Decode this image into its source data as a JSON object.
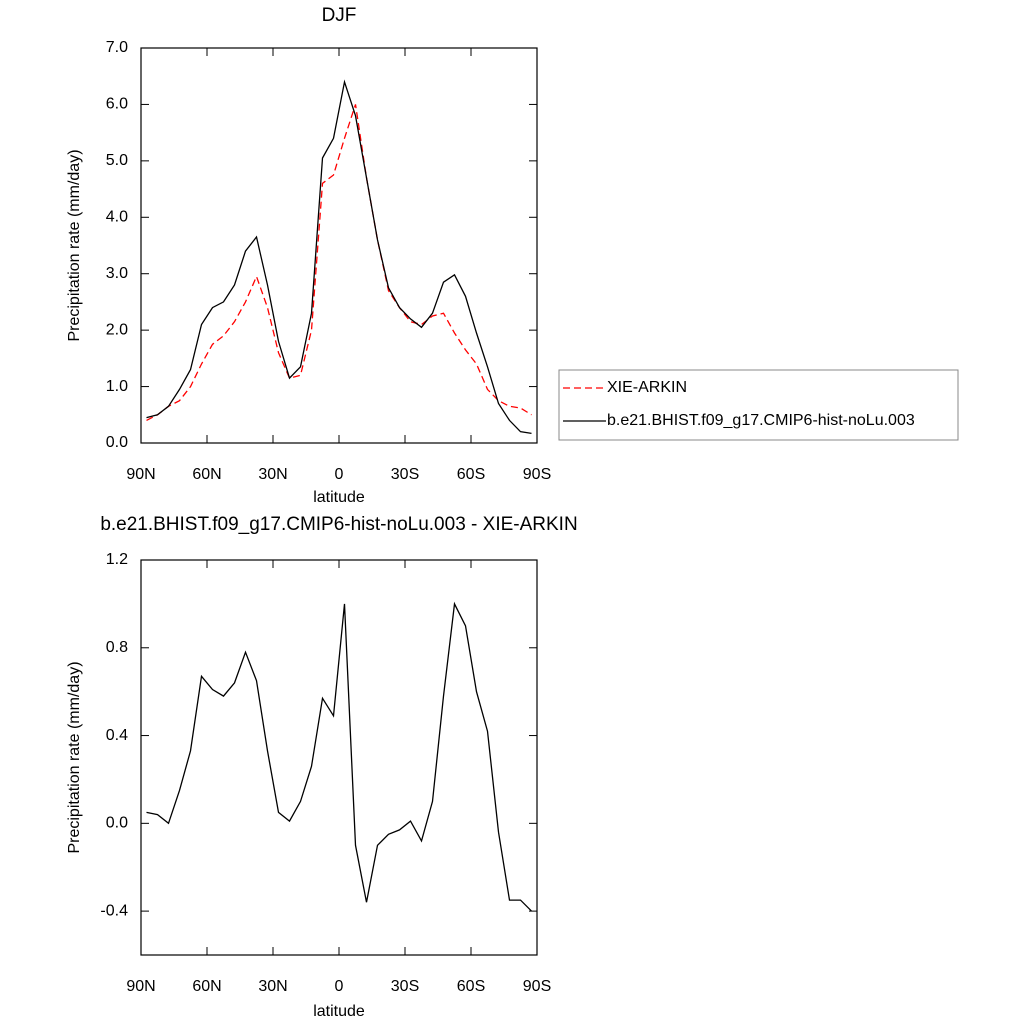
{
  "chart_data": [
    {
      "type": "line",
      "title": "DJF",
      "xlabel": "latitude",
      "ylabel": "Precipitation rate (mm/day)",
      "x": [
        87.5,
        82.5,
        77.5,
        72.5,
        67.5,
        62.5,
        57.5,
        52.5,
        47.5,
        42.5,
        37.5,
        32.5,
        27.5,
        22.5,
        17.5,
        12.5,
        7.5,
        2.5,
        -2.5,
        -7.5,
        -12.5,
        -17.5,
        -22.5,
        -27.5,
        -32.5,
        -37.5,
        -42.5,
        -47.5,
        -52.5,
        -57.5,
        -62.5,
        -67.5,
        -72.5,
        -77.5,
        -82.5,
        -87.5
      ],
      "series": [
        {
          "name": "XIE-ARKIN",
          "color": "#ff0000",
          "line_style": "dashed",
          "values": [
            0.4,
            0.5,
            0.65,
            0.75,
            1.0,
            1.4,
            1.75,
            1.9,
            2.15,
            2.5,
            2.95,
            2.4,
            1.6,
            1.15,
            1.2,
            2.0,
            4.6,
            4.75,
            5.4,
            6.0,
            4.7,
            3.6,
            2.7,
            2.4,
            2.15,
            2.1,
            2.25,
            2.3,
            1.95,
            1.65,
            1.4,
            0.95,
            0.75,
            0.65,
            0.62,
            0.5
          ]
        },
        {
          "name": "b.e21.BHIST.f09_g17.CMIP6-hist-noLu.003",
          "color": "#000000",
          "line_style": "solid",
          "values": [
            0.45,
            0.5,
            0.65,
            0.95,
            1.3,
            2.1,
            2.4,
            2.5,
            2.8,
            3.4,
            3.65,
            2.8,
            1.8,
            1.15,
            1.35,
            2.3,
            5.05,
            5.4,
            6.4,
            5.8,
            4.7,
            3.6,
            2.75,
            2.4,
            2.2,
            2.05,
            2.3,
            2.85,
            2.98,
            2.6,
            1.95,
            1.35,
            0.7,
            0.4,
            0.2,
            0.17
          ]
        }
      ],
      "xlim": [
        90,
        -90
      ],
      "xticks": [
        {
          "value": 90,
          "label": "90N"
        },
        {
          "value": 60,
          "label": "60N"
        },
        {
          "value": 30,
          "label": "30N"
        },
        0,
        {
          "value": -30,
          "label": "30S"
        },
        {
          "value": -60,
          "label": "60S"
        },
        {
          "value": -90,
          "label": "90S"
        }
      ],
      "ylim": [
        0,
        7
      ],
      "yticks": [
        {
          "value": 0,
          "label": "0.0"
        },
        {
          "value": 1,
          "label": "1.0"
        },
        {
          "value": 2,
          "label": "2.0"
        },
        {
          "value": 3,
          "label": "3.0"
        },
        {
          "value": 4,
          "label": "4.0"
        },
        {
          "value": 5,
          "label": "5.0"
        },
        {
          "value": 6,
          "label": "6.0"
        },
        {
          "value": 7,
          "label": "7.0"
        }
      ],
      "legend": "right"
    },
    {
      "type": "line",
      "title": "b.e21.BHIST.f09_g17.CMIP6-hist-noLu.003 - XIE-ARKIN",
      "xlabel": "latitude",
      "ylabel": "Precipitation rate (mm/day)",
      "x": [
        87.5,
        82.5,
        77.5,
        72.5,
        67.5,
        62.5,
        57.5,
        52.5,
        47.5,
        42.5,
        37.5,
        32.5,
        27.5,
        22.5,
        17.5,
        12.5,
        7.5,
        2.5,
        -2.5,
        -7.5,
        -12.5,
        -17.5,
        -22.5,
        -27.5,
        -32.5,
        -37.5,
        -42.5,
        -47.5,
        -52.5,
        -57.5,
        -62.5,
        -67.5,
        -72.5,
        -77.5,
        -82.5,
        -87.5
      ],
      "values": [
        0.05,
        0.04,
        0.0,
        0.15,
        0.33,
        0.67,
        0.61,
        0.58,
        0.64,
        0.78,
        0.65,
        0.33,
        0.05,
        0.01,
        0.1,
        0.26,
        0.57,
        0.49,
        1.0,
        -0.1,
        -0.36,
        -0.1,
        -0.05,
        -0.03,
        0.01,
        -0.08,
        0.1,
        0.58,
        1.0,
        0.9,
        0.6,
        0.42,
        -0.04,
        -0.35,
        -0.35,
        -0.4
      ],
      "color": "#000000",
      "line_style": "solid",
      "xlim": [
        90,
        -90
      ],
      "xticks": [
        {
          "value": 90,
          "label": "90N"
        },
        {
          "value": 60,
          "label": "60N"
        },
        {
          "value": 30,
          "label": "30N"
        },
        0,
        {
          "value": -30,
          "label": "30S"
        },
        {
          "value": -60,
          "label": "60S"
        },
        {
          "value": -90,
          "label": "90S"
        }
      ],
      "ylim": [
        -0.6,
        1.2
      ],
      "yticks": [
        -0.4,
        {
          "value": 0,
          "label": "0.0"
        },
        0.4,
        0.8,
        1.2
      ]
    }
  ]
}
